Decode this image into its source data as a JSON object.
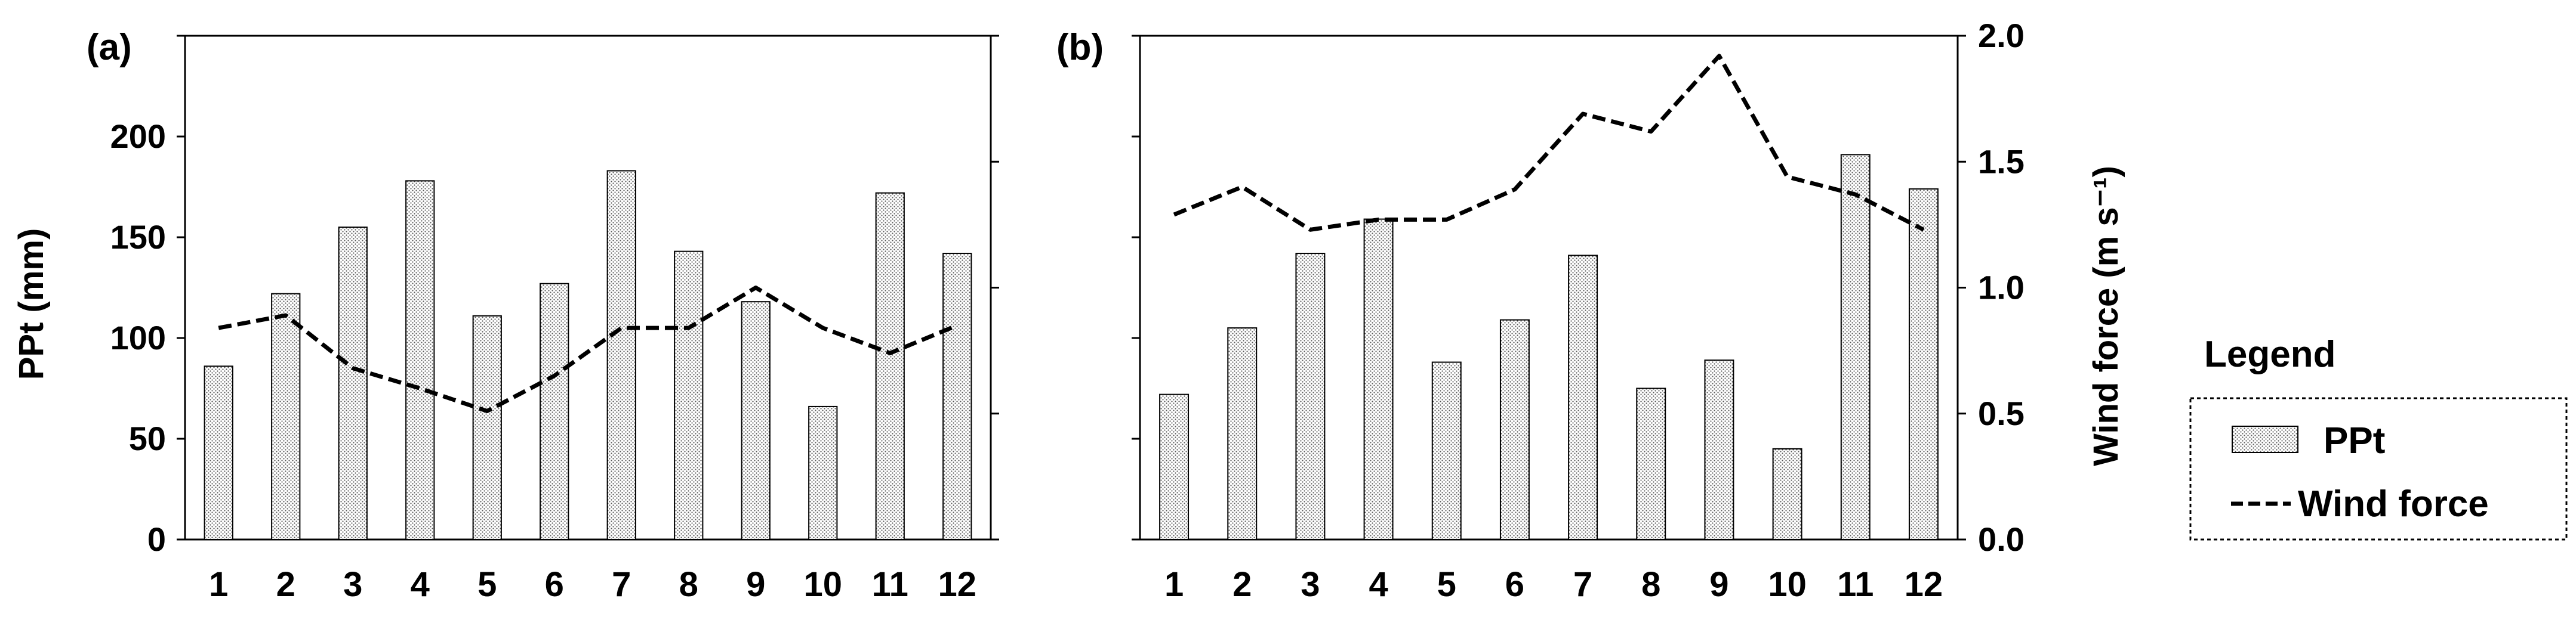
{
  "chart_data": [
    {
      "type": "bar+line",
      "panel_label": "(a)",
      "categories": [
        "1",
        "2",
        "3",
        "4",
        "5",
        "6",
        "7",
        "8",
        "9",
        "10",
        "11",
        "12"
      ],
      "series": [
        {
          "name": "PPt",
          "kind": "bar",
          "axis": "left",
          "values": [
            86,
            122,
            155,
            178,
            111,
            127,
            183,
            143,
            118,
            66,
            172,
            142
          ]
        },
        {
          "name": "Wind force",
          "kind": "line",
          "axis": "right",
          "values": [
            0.84,
            0.89,
            0.68,
            0.6,
            0.51,
            0.65,
            0.84,
            0.84,
            1.0,
            0.84,
            0.74,
            0.85
          ]
        }
      ],
      "ylabel": "PPt (mm)",
      "ylim": [
        0,
        250
      ],
      "yticks": [
        0,
        50,
        100,
        150,
        200
      ],
      "y2lim": [
        0,
        2.0
      ],
      "y2ticks_labeled": false
    },
    {
      "type": "bar+line",
      "panel_label": "(b)",
      "categories": [
        "1",
        "2",
        "3",
        "4",
        "5",
        "6",
        "7",
        "8",
        "9",
        "10",
        "11",
        "12"
      ],
      "series": [
        {
          "name": "PPt",
          "kind": "bar",
          "axis": "left",
          "values": [
            72,
            105,
            142,
            159,
            88,
            109,
            141,
            75,
            89,
            45,
            191,
            174
          ]
        },
        {
          "name": "Wind force",
          "kind": "line",
          "axis": "right",
          "values": [
            1.29,
            1.4,
            1.23,
            1.27,
            1.27,
            1.39,
            1.69,
            1.62,
            1.92,
            1.44,
            1.37,
            1.23
          ]
        }
      ],
      "ylim": [
        0,
        250
      ],
      "yticks_labeled": false,
      "y2label": "Wind force (m s⁻¹)",
      "y2lim": [
        0,
        2.0
      ],
      "y2ticks": [
        "0.0",
        "0.5",
        "1.0",
        "1.5",
        "2.0"
      ]
    }
  ],
  "legend": {
    "title": "Legend",
    "items": [
      {
        "label": "PPt",
        "kind": "bar"
      },
      {
        "label": "Wind force",
        "kind": "line"
      }
    ]
  },
  "style": {
    "bar_fill": "#d9d9d9",
    "bar_stroke": "#000000",
    "line_color": "#000000",
    "background": "#ffffff"
  }
}
